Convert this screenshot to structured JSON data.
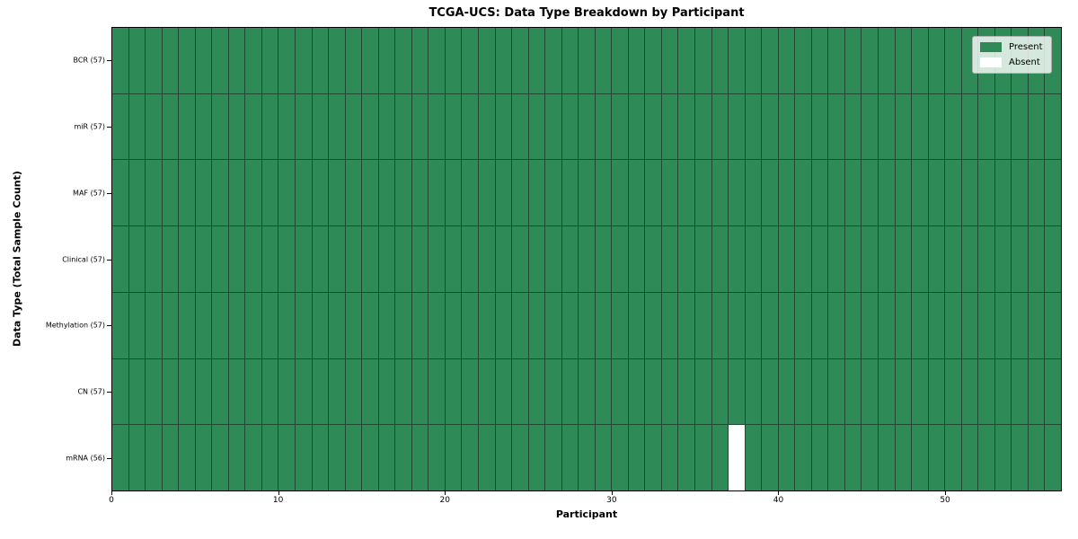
{
  "chart_data": {
    "type": "heatmap",
    "title": "TCGA-UCS: Data Type Breakdown by Participant",
    "xlabel": "Participant",
    "ylabel": "Data Type (Total Sample Count)",
    "n_participants": 57,
    "x_axis": {
      "ticks": [
        0,
        10,
        20,
        30,
        40,
        50
      ],
      "range": [
        0,
        57
      ]
    },
    "rows": [
      {
        "label": "BCR (57)",
        "data_type": "BCR",
        "present_count": 57,
        "absent_participants": []
      },
      {
        "label": "miR (57)",
        "data_type": "miR",
        "present_count": 57,
        "absent_participants": []
      },
      {
        "label": "MAF (57)",
        "data_type": "MAF",
        "present_count": 57,
        "absent_participants": []
      },
      {
        "label": "Clinical (57)",
        "data_type": "Clinical",
        "present_count": 57,
        "absent_participants": []
      },
      {
        "label": "Methylation (57)",
        "data_type": "Methylation",
        "present_count": 57,
        "absent_participants": []
      },
      {
        "label": "CN (57)",
        "data_type": "CN",
        "present_count": 57,
        "absent_participants": []
      },
      {
        "label": "mRNA (56)",
        "data_type": "mRNA",
        "present_count": 56,
        "absent_participants": [
          37
        ]
      }
    ],
    "legend": {
      "position": "upper right",
      "entries": [
        {
          "label": "Present",
          "color": "#2e8b57"
        },
        {
          "label": "Absent",
          "color": "#ffffff"
        }
      ]
    },
    "colors": {
      "present": "#2e8b57",
      "absent": "#ffffff",
      "grid_line": "#1d4a31",
      "spine": "#000000"
    },
    "grid": true
  }
}
